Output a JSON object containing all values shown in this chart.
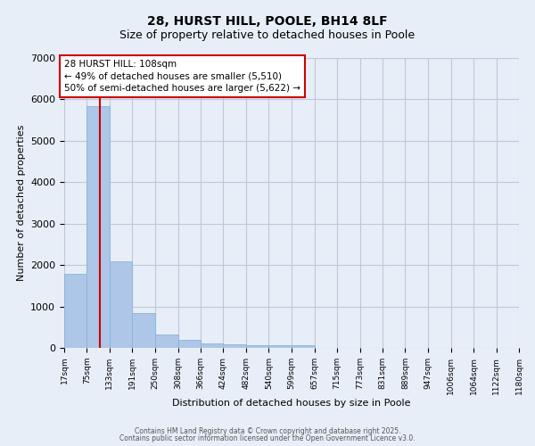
{
  "title1": "28, HURST HILL, POOLE, BH14 8LF",
  "title2": "Size of property relative to detached houses in Poole",
  "xlabel": "Distribution of detached houses by size in Poole",
  "ylabel": "Number of detached properties",
  "bar_edges": [
    17,
    75,
    133,
    191,
    250,
    308,
    366,
    424,
    482,
    540,
    599,
    657,
    715,
    773,
    831,
    889,
    947,
    1006,
    1064,
    1122,
    1180
  ],
  "bar_heights": [
    1780,
    5830,
    2080,
    840,
    330,
    185,
    105,
    80,
    60,
    55,
    70,
    0,
    0,
    0,
    0,
    0,
    0,
    0,
    0,
    0
  ],
  "bar_color": "#aec6e8",
  "bar_edgecolor": "#8ab4d8",
  "bg_color": "#e8eef8",
  "grid_color": "#c0c8d8",
  "redline_x": 108,
  "redline_color": "#cc0000",
  "annotation_text": "28 HURST HILL: 108sqm\n← 49% of detached houses are smaller (5,510)\n50% of semi-detached houses are larger (5,622) →",
  "ylim": [
    0,
    7000
  ],
  "yticks": [
    0,
    1000,
    2000,
    3000,
    4000,
    5000,
    6000,
    7000
  ],
  "tick_labels": [
    "17sqm",
    "75sqm",
    "133sqm",
    "191sqm",
    "250sqm",
    "308sqm",
    "366sqm",
    "424sqm",
    "482sqm",
    "540sqm",
    "599sqm",
    "657sqm",
    "715sqm",
    "773sqm",
    "831sqm",
    "889sqm",
    "947sqm",
    "1006sqm",
    "1064sqm",
    "1122sqm",
    "1180sqm"
  ],
  "footer1": "Contains HM Land Registry data © Crown copyright and database right 2025.",
  "footer2": "Contains public sector information licensed under the Open Government Licence v3.0."
}
